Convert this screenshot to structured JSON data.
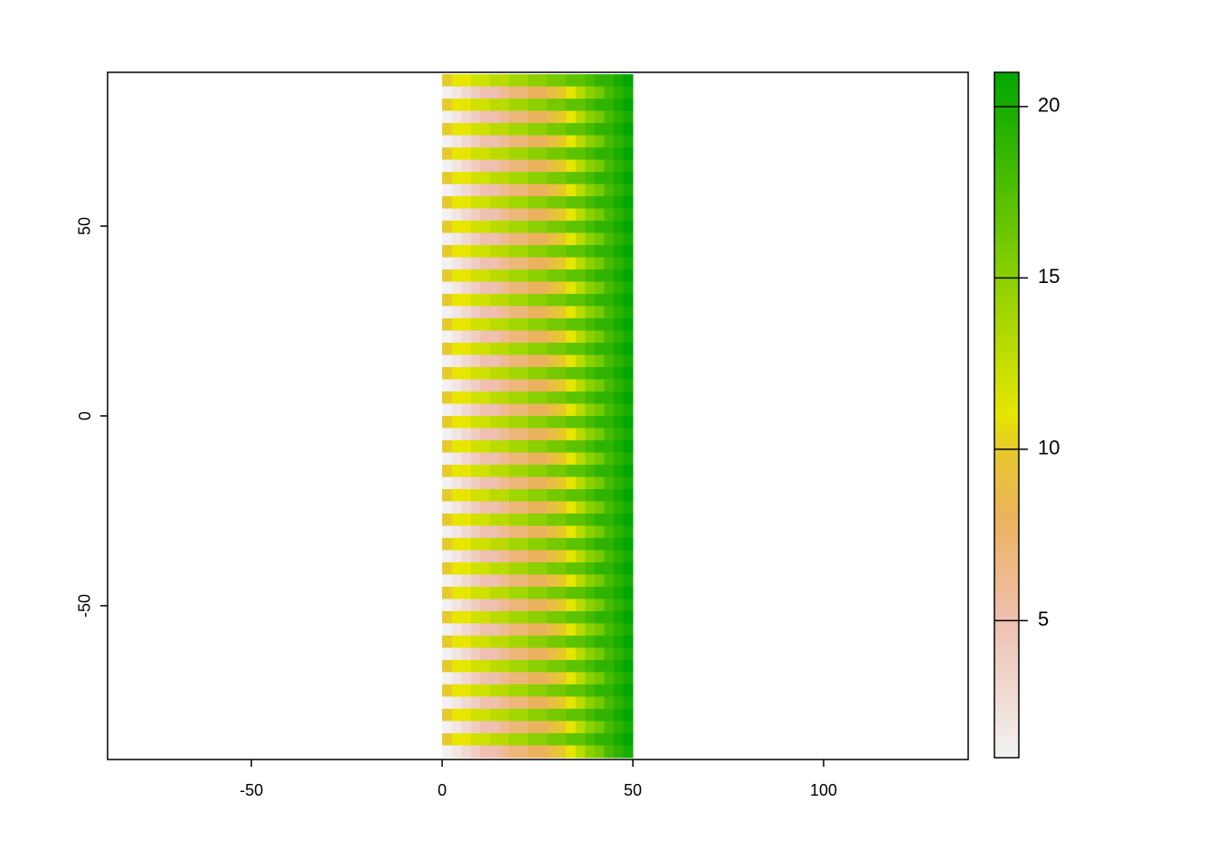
{
  "chart_data": {
    "type": "raster",
    "xlim": [
      -87.7,
      137.9
    ],
    "ylim": [
      -90.5,
      90.5
    ],
    "xticks": [
      -50,
      0,
      50,
      100
    ],
    "yticks": [
      -50,
      0,
      50
    ],
    "x_extent": [
      0,
      50
    ],
    "y_extent": [
      -90,
      90
    ],
    "zlim": [
      1,
      21
    ],
    "zticks": [
      5,
      10,
      15,
      20
    ],
    "colorscale": [
      [
        1,
        "#f2f2f2"
      ],
      [
        5,
        "#efc0af"
      ],
      [
        8,
        "#ebb25e"
      ],
      [
        10,
        "#e6c92a"
      ],
      [
        11,
        "#e6e600"
      ],
      [
        15,
        "#8bd000"
      ],
      [
        21,
        "#00a600"
      ]
    ],
    "z": [
      [
        10,
        11,
        11,
        12,
        12,
        13,
        13,
        14,
        14,
        15,
        15,
        16,
        16,
        17,
        17,
        18,
        19,
        19,
        20,
        21
      ],
      [
        1,
        2,
        3,
        4,
        5,
        5,
        6,
        7,
        7,
        8,
        8,
        9,
        10,
        11,
        13,
        15,
        16,
        18,
        19,
        20
      ],
      [
        10,
        11,
        11,
        12,
        12,
        13,
        13,
        14,
        14,
        15,
        15,
        16,
        16,
        17,
        17,
        18,
        19,
        19,
        20,
        21
      ],
      [
        1,
        2,
        3,
        4,
        5,
        5,
        6,
        7,
        7,
        8,
        8,
        9,
        10,
        11,
        13,
        15,
        16,
        18,
        19,
        20
      ],
      [
        10,
        11,
        11,
        12,
        12,
        13,
        13,
        14,
        14,
        15,
        15,
        16,
        16,
        17,
        17,
        18,
        19,
        19,
        20,
        21
      ],
      [
        1,
        2,
        3,
        4,
        5,
        5,
        6,
        7,
        7,
        8,
        8,
        9,
        10,
        11,
        13,
        15,
        16,
        18,
        19,
        20
      ],
      [
        10,
        11,
        11,
        12,
        12,
        13,
        13,
        14,
        14,
        15,
        15,
        16,
        16,
        17,
        17,
        18,
        19,
        19,
        20,
        21
      ],
      [
        1,
        2,
        3,
        4,
        5,
        5,
        6,
        7,
        7,
        8,
        8,
        9,
        10,
        11,
        13,
        15,
        16,
        18,
        19,
        20
      ],
      [
        10,
        11,
        11,
        12,
        12,
        13,
        13,
        14,
        14,
        15,
        15,
        16,
        16,
        17,
        17,
        18,
        19,
        19,
        20,
        21
      ],
      [
        1,
        2,
        3,
        4,
        5,
        5,
        6,
        7,
        7,
        8,
        8,
        9,
        10,
        11,
        13,
        15,
        16,
        18,
        19,
        20
      ],
      [
        10,
        11,
        11,
        12,
        12,
        13,
        13,
        14,
        14,
        15,
        15,
        16,
        16,
        17,
        17,
        18,
        19,
        19,
        20,
        21
      ],
      [
        1,
        2,
        3,
        4,
        5,
        5,
        6,
        7,
        7,
        8,
        8,
        9,
        10,
        11,
        13,
        15,
        16,
        18,
        19,
        20
      ],
      [
        10,
        11,
        11,
        12,
        12,
        13,
        13,
        14,
        14,
        15,
        15,
        16,
        16,
        17,
        17,
        18,
        19,
        19,
        20,
        21
      ],
      [
        1,
        2,
        3,
        4,
        5,
        5,
        6,
        7,
        7,
        8,
        8,
        9,
        10,
        11,
        13,
        15,
        16,
        18,
        19,
        20
      ],
      [
        10,
        11,
        11,
        12,
        12,
        13,
        13,
        14,
        14,
        15,
        15,
        16,
        16,
        17,
        17,
        18,
        19,
        19,
        20,
        21
      ],
      [
        1,
        2,
        3,
        4,
        5,
        5,
        6,
        7,
        7,
        8,
        8,
        9,
        10,
        11,
        13,
        15,
        16,
        18,
        19,
        20
      ],
      [
        10,
        11,
        11,
        12,
        12,
        13,
        13,
        14,
        14,
        15,
        15,
        16,
        16,
        17,
        17,
        18,
        19,
        19,
        20,
        21
      ],
      [
        1,
        2,
        3,
        4,
        5,
        5,
        6,
        7,
        7,
        8,
        8,
        9,
        10,
        11,
        13,
        15,
        16,
        18,
        19,
        20
      ],
      [
        10,
        11,
        11,
        12,
        12,
        13,
        13,
        14,
        14,
        15,
        15,
        16,
        16,
        17,
        17,
        18,
        19,
        19,
        20,
        21
      ],
      [
        1,
        2,
        3,
        4,
        5,
        5,
        6,
        7,
        7,
        8,
        8,
        9,
        10,
        11,
        13,
        15,
        16,
        18,
        19,
        20
      ],
      [
        10,
        11,
        11,
        12,
        12,
        13,
        13,
        14,
        14,
        15,
        15,
        16,
        16,
        17,
        17,
        18,
        19,
        19,
        20,
        21
      ],
      [
        1,
        2,
        3,
        4,
        5,
        5,
        6,
        7,
        7,
        8,
        8,
        9,
        10,
        11,
        13,
        15,
        16,
        18,
        19,
        20
      ],
      [
        10,
        11,
        11,
        12,
        12,
        13,
        13,
        14,
        14,
        15,
        15,
        16,
        16,
        17,
        17,
        18,
        19,
        19,
        20,
        21
      ],
      [
        1,
        2,
        3,
        4,
        5,
        5,
        6,
        7,
        7,
        8,
        8,
        9,
        10,
        11,
        13,
        15,
        16,
        18,
        19,
        20
      ],
      [
        10,
        11,
        11,
        12,
        12,
        13,
        13,
        14,
        14,
        15,
        15,
        16,
        16,
        17,
        17,
        18,
        19,
        19,
        20,
        21
      ],
      [
        1,
        2,
        3,
        4,
        5,
        5,
        6,
        7,
        7,
        8,
        8,
        9,
        10,
        11,
        13,
        15,
        16,
        18,
        19,
        20
      ],
      [
        10,
        11,
        11,
        12,
        12,
        13,
        13,
        14,
        14,
        15,
        15,
        16,
        16,
        17,
        17,
        18,
        19,
        19,
        20,
        21
      ],
      [
        1,
        2,
        3,
        4,
        5,
        5,
        6,
        7,
        7,
        8,
        8,
        9,
        10,
        11,
        13,
        15,
        16,
        18,
        19,
        20
      ],
      [
        10,
        11,
        11,
        12,
        12,
        13,
        13,
        14,
        14,
        15,
        15,
        16,
        16,
        17,
        17,
        18,
        19,
        19,
        20,
        21
      ],
      [
        1,
        2,
        3,
        4,
        5,
        5,
        6,
        7,
        7,
        8,
        8,
        9,
        10,
        11,
        13,
        15,
        16,
        18,
        19,
        20
      ],
      [
        10,
        11,
        11,
        12,
        12,
        13,
        13,
        14,
        14,
        15,
        15,
        16,
        16,
        17,
        17,
        18,
        19,
        19,
        20,
        21
      ],
      [
        1,
        2,
        3,
        4,
        5,
        5,
        6,
        7,
        7,
        8,
        8,
        9,
        10,
        11,
        13,
        15,
        16,
        18,
        19,
        20
      ],
      [
        10,
        11,
        11,
        12,
        12,
        13,
        13,
        14,
        14,
        15,
        15,
        16,
        16,
        17,
        17,
        18,
        19,
        19,
        20,
        21
      ],
      [
        1,
        2,
        3,
        4,
        5,
        5,
        6,
        7,
        7,
        8,
        8,
        9,
        10,
        11,
        13,
        15,
        16,
        18,
        19,
        20
      ],
      [
        10,
        11,
        11,
        12,
        12,
        13,
        13,
        14,
        14,
        15,
        15,
        16,
        16,
        17,
        17,
        18,
        19,
        19,
        20,
        21
      ],
      [
        1,
        2,
        3,
        4,
        5,
        5,
        6,
        7,
        7,
        8,
        8,
        9,
        10,
        11,
        13,
        15,
        16,
        18,
        19,
        20
      ],
      [
        10,
        11,
        11,
        12,
        12,
        13,
        13,
        14,
        14,
        15,
        15,
        16,
        16,
        17,
        17,
        18,
        19,
        19,
        20,
        21
      ],
      [
        1,
        2,
        3,
        4,
        5,
        5,
        6,
        7,
        7,
        8,
        8,
        9,
        10,
        11,
        13,
        15,
        16,
        18,
        19,
        20
      ],
      [
        10,
        11,
        11,
        12,
        12,
        13,
        13,
        14,
        14,
        15,
        15,
        16,
        16,
        17,
        17,
        18,
        19,
        19,
        20,
        21
      ],
      [
        1,
        2,
        3,
        4,
        5,
        5,
        6,
        7,
        7,
        8,
        8,
        9,
        10,
        11,
        13,
        15,
        16,
        18,
        19,
        20
      ],
      [
        10,
        11,
        11,
        12,
        12,
        13,
        13,
        14,
        14,
        15,
        15,
        16,
        16,
        17,
        17,
        18,
        19,
        19,
        20,
        21
      ],
      [
        1,
        2,
        3,
        4,
        5,
        5,
        6,
        7,
        7,
        8,
        8,
        9,
        10,
        11,
        13,
        15,
        16,
        18,
        19,
        20
      ],
      [
        10,
        11,
        11,
        12,
        12,
        13,
        13,
        14,
        14,
        15,
        15,
        16,
        16,
        17,
        17,
        18,
        19,
        19,
        20,
        21
      ],
      [
        1,
        2,
        3,
        4,
        5,
        5,
        6,
        7,
        7,
        8,
        8,
        9,
        10,
        11,
        13,
        15,
        16,
        18,
        19,
        20
      ],
      [
        10,
        11,
        11,
        12,
        12,
        13,
        13,
        14,
        14,
        15,
        15,
        16,
        16,
        17,
        17,
        18,
        19,
        19,
        20,
        21
      ],
      [
        1,
        2,
        3,
        4,
        5,
        5,
        6,
        7,
        7,
        8,
        8,
        9,
        10,
        11,
        13,
        15,
        16,
        18,
        19,
        20
      ],
      [
        10,
        11,
        11,
        12,
        12,
        13,
        13,
        14,
        14,
        15,
        15,
        16,
        16,
        17,
        17,
        18,
        19,
        19,
        20,
        21
      ],
      [
        1,
        2,
        3,
        4,
        5,
        5,
        6,
        7,
        7,
        8,
        8,
        9,
        10,
        11,
        13,
        15,
        16,
        18,
        19,
        20
      ],
      [
        10,
        11,
        11,
        12,
        12,
        13,
        13,
        14,
        14,
        15,
        15,
        16,
        16,
        17,
        17,
        18,
        19,
        19,
        20,
        21
      ],
      [
        1,
        2,
        3,
        4,
        5,
        5,
        6,
        7,
        7,
        8,
        8,
        9,
        10,
        11,
        13,
        15,
        16,
        18,
        19,
        20
      ],
      [
        10,
        11,
        11,
        12,
        12,
        13,
        13,
        14,
        14,
        15,
        15,
        16,
        16,
        17,
        17,
        18,
        19,
        19,
        20,
        21
      ],
      [
        1,
        2,
        3,
        4,
        5,
        5,
        6,
        7,
        7,
        8,
        8,
        9,
        10,
        11,
        13,
        15,
        16,
        18,
        19,
        20
      ],
      [
        10,
        11,
        11,
        12,
        12,
        13,
        13,
        14,
        14,
        15,
        15,
        16,
        16,
        17,
        17,
        18,
        19,
        19,
        20,
        21
      ],
      [
        1,
        2,
        3,
        4,
        5,
        5,
        6,
        7,
        7,
        8,
        8,
        9,
        10,
        11,
        13,
        15,
        16,
        18,
        19,
        20
      ],
      [
        10,
        11,
        11,
        12,
        12,
        13,
        13,
        14,
        14,
        15,
        15,
        16,
        16,
        17,
        17,
        18,
        19,
        19,
        20,
        21
      ],
      [
        1,
        2,
        3,
        4,
        5,
        5,
        6,
        7,
        7,
        8,
        8,
        9,
        10,
        11,
        13,
        15,
        16,
        18,
        19,
        20
      ]
    ]
  }
}
